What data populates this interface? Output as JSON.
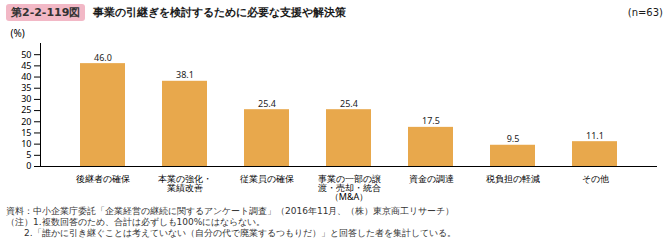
{
  "chart_data": {
    "type": "bar",
    "title": "事業の引継ぎを検討するために必要な支援や解決策",
    "categories": [
      "後継者の確保",
      "本業の強化・\n業績改善",
      "従業員の確保",
      "事業の一部の譲\n渡・売却・統合\n（M&A）",
      "資金の調達",
      "税負担の軽減",
      "その他"
    ],
    "values": [
      46.0,
      38.1,
      25.4,
      25.4,
      17.5,
      9.5,
      11.1
    ],
    "value_labels": [
      "46.0",
      "38.1",
      "25.4",
      "25.4",
      "17.5",
      "9.5",
      "11.1"
    ],
    "data_labels": true,
    "color": "#E8A84C",
    "ylabel": "(%)",
    "ylim": [
      0,
      55
    ],
    "yticks": [
      0,
      5,
      10,
      15,
      20,
      25,
      30,
      35,
      40,
      45,
      50
    ],
    "grid": false,
    "annotations": [
      "第2-2-119図",
      "(n=63)",
      "資料：中小企業庁委託「企業経営の継続に関するアンケート調査」（2016年11月、（株）東京商工リサーチ）",
      "（注）1.複数回答のため、合計は必ずしも100%にはならない。",
      "　　2.「誰かに引き継ぐことは考えていない（自分の代で廃業するつもりだ）」と回答した者を集計している。"
    ]
  }
}
